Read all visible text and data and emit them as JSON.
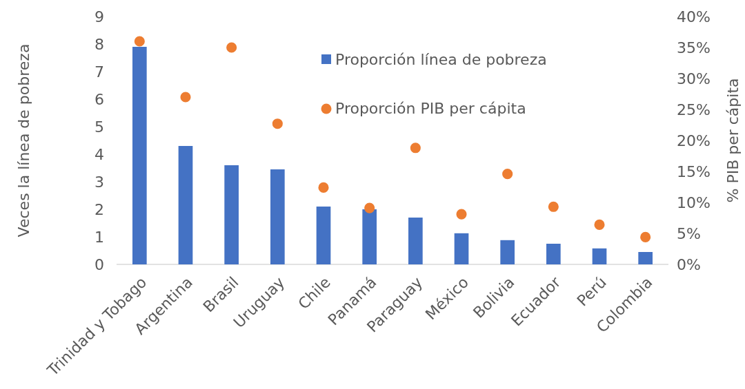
{
  "chart_data": {
    "type": "bar",
    "categories": [
      "Trinidad y Tobago",
      "Argentina",
      "Brasil",
      "Uruguay",
      "Chile",
      "Panamá",
      "Paraguay",
      "México",
      "Bolivia",
      "Ecuador",
      "Perú",
      "Colombia"
    ],
    "series": [
      {
        "name": "Proporción línea de pobreza",
        "color": "#4472c4",
        "values": [
          7.9,
          4.3,
          3.6,
          3.45,
          2.1,
          2.0,
          1.7,
          1.13,
          0.88,
          0.75,
          0.58,
          0.45
        ]
      },
      {
        "name": "Proporción PIB per cápita",
        "type": "scatter",
        "axis": "y2",
        "color": "#ed7d31",
        "marker": "circle",
        "values": [
          36,
          27,
          35,
          22.7,
          12.4,
          9.1,
          18.8,
          8.1,
          14.6,
          9.3,
          6.4,
          4.4
        ]
      }
    ],
    "ylabel": "Veces la línea de pobreza",
    "y2label": "% PIB per cápita",
    "ylim": [
      0,
      9
    ],
    "yticks": [
      0,
      1,
      2,
      3,
      4,
      5,
      6,
      7,
      8,
      9
    ],
    "y2lim": [
      0,
      40
    ],
    "y2ticks": [
      {
        "value": 0,
        "label": "0%"
      },
      {
        "value": 5,
        "label": "5%"
      },
      {
        "value": 10,
        "label": "10%"
      },
      {
        "value": 15,
        "label": "15%"
      },
      {
        "value": 20,
        "label": "20%"
      },
      {
        "value": 25,
        "label": "25%"
      },
      {
        "value": 30,
        "label": "30%"
      },
      {
        "value": 35,
        "label": "35%"
      },
      {
        "value": 40,
        "label": "40%"
      }
    ],
    "grid": false,
    "legend": "top right"
  }
}
